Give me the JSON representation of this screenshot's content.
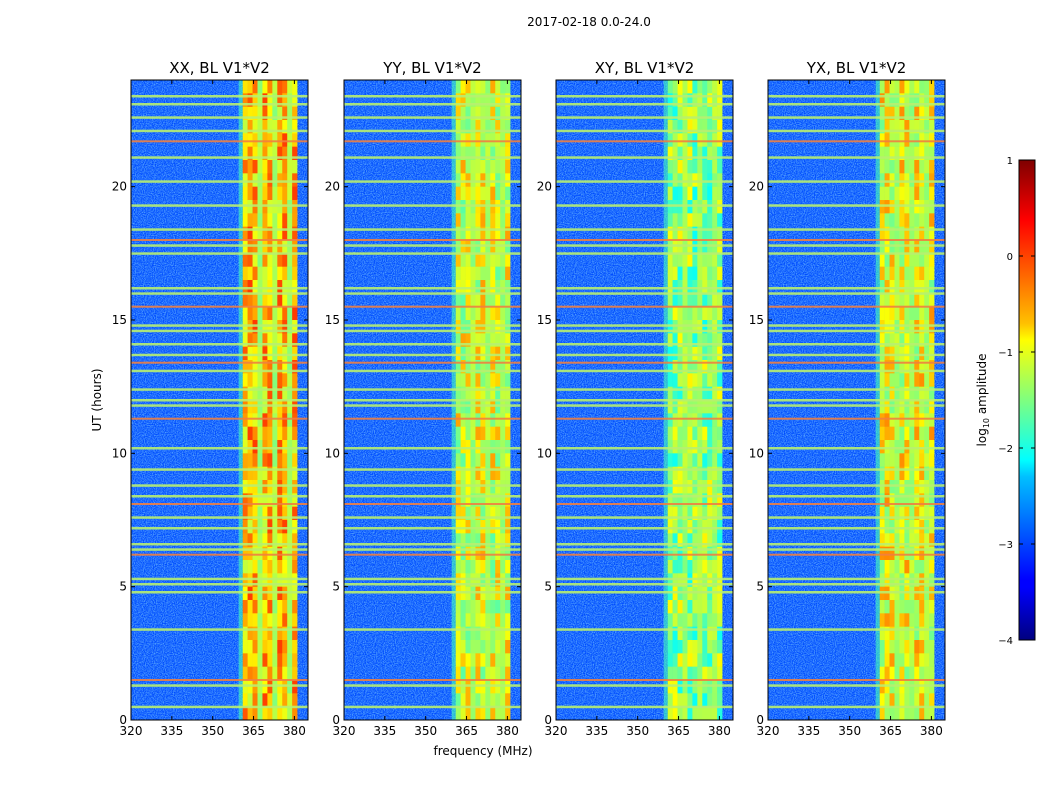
{
  "chart_data": {
    "type": "heatmap",
    "suptitle": "2017-02-18 0.0-24.0",
    "xlabel": "frequency (MHz)",
    "ylabel": "UT (hours)",
    "xlim": [
      320,
      385
    ],
    "ylim": [
      0,
      24
    ],
    "xticks": [
      "320",
      "335",
      "350",
      "365",
      "380"
    ],
    "yticks": [
      "0",
      "5",
      "10",
      "15",
      "20"
    ],
    "panels": [
      {
        "title": "XX, BL V1*V2",
        "peak_log_amplitude": 0.3
      },
      {
        "title": "YY, BL V1*V2",
        "peak_log_amplitude": -0.2
      },
      {
        "title": "XY, BL V1*V2",
        "peak_log_amplitude": -0.6
      },
      {
        "title": "YX, BL V1*V2",
        "peak_log_amplitude": -0.1
      }
    ],
    "signal_band_MHz": [
      361,
      381
    ],
    "background_log_amplitude": -3,
    "colorbar": {
      "label_prefix": "log",
      "label_sub": "10",
      "label_suffix": " amplitude",
      "range": [
        -4,
        1
      ],
      "ticks": [
        "−4",
        "−3",
        "−2",
        "−1",
        "0",
        "1"
      ],
      "colormap": "jet"
    },
    "flagged_rows_UT": [
      0.5,
      1.3,
      1.5,
      3.4,
      4.8,
      5.1,
      5.3,
      6.2,
      6.4,
      6.6,
      7.2,
      7.6,
      8.1,
      8.4,
      8.8,
      9.4,
      10.2,
      11.3,
      11.8,
      12.0,
      12.4,
      13.1,
      13.4,
      13.7,
      14.1,
      14.6,
      14.8,
      15.5,
      16.0,
      16.2,
      17.5,
      17.8,
      18.0,
      18.4,
      19.3,
      20.2,
      21.1,
      21.7,
      22.1,
      22.6,
      23.1,
      23.4
    ]
  }
}
